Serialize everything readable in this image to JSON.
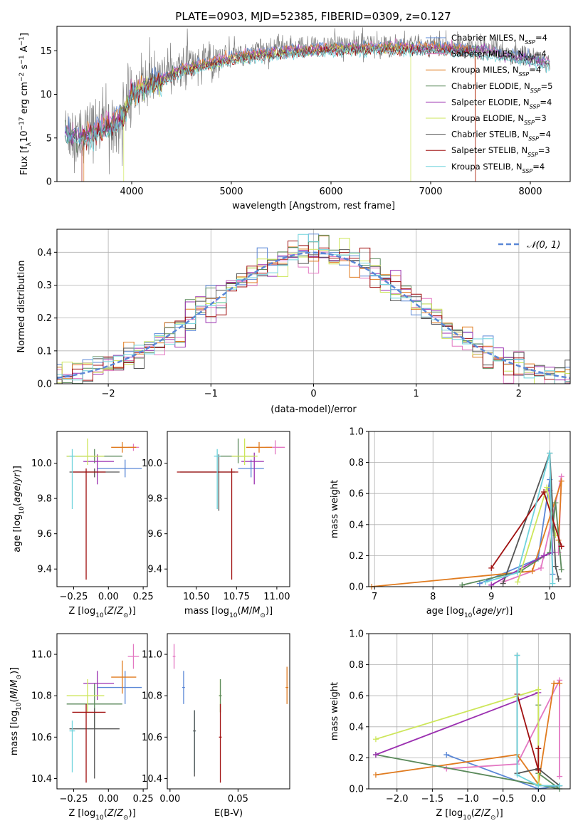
{
  "figure_title": "PLATE=0903, MJD=52385, FIBERID=0309, z=0.127",
  "colors": {
    "Chabrier MILES": "#5a87d6",
    "Salpeter MILES": "#e377c2",
    "Kroupa MILES": "#e07b1f",
    "Chabrier ELODIE": "#5b8a5b",
    "Salpeter ELODIE": "#9b30b0",
    "Kroupa ELODIE": "#cde65a",
    "Chabrier STELIB": "#555555",
    "Salpeter STELIB": "#a01010",
    "Kroupa STELIB": "#6fd3dc",
    "data": "#808080",
    "gauss": "#5a87d6"
  },
  "chart_data": [
    {
      "type": "line",
      "panel": "spectrum",
      "title": "",
      "xlabel": "wavelength [Angstrom, rest frame]",
      "ylabel": "Flux [f_λ 10^-17 erg cm^-2 s^-1 A^-1]",
      "xlim": [
        3250,
        8400
      ],
      "ylim": [
        0,
        17.8
      ],
      "xticks": [
        4000,
        5000,
        6000,
        7000,
        8000
      ],
      "yticks": [
        0,
        5,
        10,
        15
      ],
      "grid": false,
      "legend_position": "top-right",
      "legend": [
        {
          "label": "Chabrier MILES",
          "sub": "SSP",
          "n": "4"
        },
        {
          "label": "Salpeter MILES",
          "sub": "SSP",
          "n": "4"
        },
        {
          "label": "Kroupa MILES",
          "sub": "SSP",
          "n": "4"
        },
        {
          "label": "Chabrier ELODIE",
          "sub": "SSP",
          "n": "5"
        },
        {
          "label": "Salpeter ELODIE",
          "sub": "SSP",
          "n": "4"
        },
        {
          "label": "Kroupa ELODIE",
          "sub": "SSP",
          "n": "3"
        },
        {
          "label": "Chabrier STELIB",
          "sub": "SSP",
          "n": "4"
        },
        {
          "label": "Salpeter STELIB",
          "sub": "SSP",
          "n": "3"
        },
        {
          "label": "Kroupa STELIB",
          "sub": "SSP",
          "n": "4"
        }
      ],
      "continuum": {
        "x": [
          3330,
          3500,
          3600,
          3700,
          3800,
          3900,
          4000,
          4100,
          4200,
          4300,
          4400,
          4500,
          4700,
          5000,
          5300,
          5600,
          6000,
          6500,
          7000,
          7500,
          8000,
          8200
        ],
        "y": [
          5.7,
          5.5,
          6.0,
          6.4,
          6.9,
          7.7,
          10.5,
          11.0,
          11.6,
          11.9,
          12.7,
          13.2,
          13.7,
          14.5,
          15.0,
          15.3,
          15.6,
          15.7,
          15.6,
          15.3,
          14.3,
          13.8
        ]
      },
      "model_cutoffs": {
        "Kroupa ELODIE": [
          3920,
          6800
        ],
        "Salpeter STELIB": [
          3500,
          7450
        ],
        "Kroupa MILES": [
          3520,
          7450
        ]
      }
    },
    {
      "type": "histogram",
      "panel": "residuals",
      "xlabel": "(data-model)/error",
      "ylabel": "Normed distribution",
      "xlim": [
        -2.5,
        2.5
      ],
      "ylim": [
        0,
        0.47
      ],
      "xticks": [
        -2,
        -1,
        0,
        1,
        2
      ],
      "yticks": [
        0.0,
        0.1,
        0.2,
        0.3,
        0.4
      ],
      "grid": true,
      "legend_position": "top-right",
      "gauss_label": "𝒩(0, 1)",
      "bin_width": 0.1
    },
    {
      "type": "errorbar",
      "panel": "age-Z",
      "xlabel": "Z [log10(Z/Z☉)]",
      "ylabel": "age  [log10(age/yr)]",
      "xlim": [
        -0.37,
        0.28
      ],
      "ylim": [
        9.3,
        10.18
      ],
      "xticks": [
        -0.25,
        0.0,
        0.25
      ],
      "yticks": [
        9.4,
        9.6,
        9.8,
        10.0
      ],
      "points": [
        {
          "model": "Chabrier MILES",
          "x": 0.12,
          "y": 9.97,
          "xerr": [
            0.2,
            0.12
          ],
          "yerr": [
            0.05,
            0.05
          ]
        },
        {
          "model": "Salpeter MILES",
          "x": 0.18,
          "y": 10.09,
          "xerr": [
            0.04,
            0.04
          ],
          "yerr": [
            0.02,
            0.02
          ]
        },
        {
          "model": "Kroupa MILES",
          "x": 0.1,
          "y": 10.09,
          "xerr": [
            0.08,
            0.1
          ],
          "yerr": [
            0.03,
            0.03
          ]
        },
        {
          "model": "Chabrier ELODIE",
          "x": -0.1,
          "y": 10.04,
          "xerr": [
            0.2,
            0.2
          ],
          "yerr": [
            0.04,
            0.04
          ]
        },
        {
          "model": "Salpeter ELODIE",
          "x": -0.08,
          "y": 10.01,
          "xerr": [
            0.1,
            0.12
          ],
          "yerr": [
            0.13,
            0.04
          ]
        },
        {
          "model": "Kroupa ELODIE",
          "x": -0.15,
          "y": 10.04,
          "xerr": [
            0.15,
            0.12
          ],
          "yerr": [
            0.05,
            0.1
          ]
        },
        {
          "model": "Chabrier STELIB",
          "x": -0.1,
          "y": 9.95,
          "xerr": [
            0.18,
            0.18
          ],
          "yerr": [
            0.03,
            0.02
          ]
        },
        {
          "model": "Salpeter STELIB",
          "x": -0.16,
          "y": 9.95,
          "xerr": [
            0.1,
            0.14
          ],
          "yerr": [
            0.61,
            0.02
          ]
        },
        {
          "model": "Kroupa STELIB",
          "x": -0.26,
          "y": 10.04,
          "xerr": [
            0.02,
            0.02
          ],
          "yerr": [
            0.3,
            0.04
          ]
        }
      ]
    },
    {
      "type": "errorbar",
      "panel": "age-mass",
      "xlabel": "mass [log10(M/M☉)]",
      "ylabel": "",
      "xlim": [
        10.32,
        11.08
      ],
      "ylim": [
        9.3,
        10.18
      ],
      "xticks": [
        10.5,
        10.75,
        11.0
      ],
      "xticklabels": [
        "10.50",
        "10.75",
        "11.00"
      ],
      "yticks": [
        9.4,
        9.6,
        9.8,
        10.0
      ],
      "points": [
        {
          "model": "Chabrier MILES",
          "x": 10.84,
          "y": 9.97,
          "xerr": [
            0.08,
            0.08
          ],
          "yerr": [
            0.05,
            0.05
          ]
        },
        {
          "model": "Salpeter MILES",
          "x": 10.99,
          "y": 10.09,
          "xerr": [
            0.06,
            0.06
          ],
          "yerr": [
            0.04,
            0.04
          ]
        },
        {
          "model": "Kroupa MILES",
          "x": 10.89,
          "y": 10.09,
          "xerr": [
            0.08,
            0.08
          ],
          "yerr": [
            0.03,
            0.03
          ]
        },
        {
          "model": "Chabrier ELODIE",
          "x": 10.76,
          "y": 10.04,
          "xerr": [
            0.12,
            0.1
          ],
          "yerr": [
            0.04,
            0.1
          ]
        },
        {
          "model": "Salpeter ELODIE",
          "x": 10.86,
          "y": 10.01,
          "xerr": [
            0.08,
            0.06
          ],
          "yerr": [
            0.13,
            0.05
          ]
        },
        {
          "model": "Kroupa ELODIE",
          "x": 10.8,
          "y": 10.04,
          "xerr": [
            0.08,
            0.08
          ],
          "yerr": [
            0.05,
            0.1
          ]
        },
        {
          "model": "Chabrier STELIB",
          "x": 10.64,
          "y": 9.95,
          "xerr": [
            0.24,
            0.1
          ],
          "yerr": [
            0.22,
            0.1
          ]
        },
        {
          "model": "Salpeter STELIB",
          "x": 10.72,
          "y": 9.95,
          "xerr": [
            0.34,
            0.04
          ],
          "yerr": [
            0.61,
            0.02
          ]
        },
        {
          "model": "Kroupa STELIB",
          "x": 10.63,
          "y": 10.04,
          "xerr": [
            0.02,
            0.02
          ],
          "yerr": [
            0.3,
            0.04
          ]
        }
      ]
    },
    {
      "type": "line",
      "panel": "mass-weight-age",
      "xlabel": "age  [log10(age/yr)]",
      "ylabel": "mass weight",
      "xlim": [
        6.9,
        10.35
      ],
      "ylim": [
        0,
        1.0
      ],
      "xticks": [
        7,
        8,
        9,
        10
      ],
      "yticks": [
        0.0,
        0.2,
        0.4,
        0.6,
        0.8,
        1.0
      ],
      "grid": true,
      "series": [
        {
          "model": "Chabrier MILES",
          "x": [
            8.8,
            9.8,
            10.0,
            10.05
          ],
          "y": [
            0.02,
            0.18,
            0.69,
            0.08
          ]
        },
        {
          "model": "Salpeter MILES",
          "x": [
            9.2,
            9.85,
            10.2,
            10.15
          ],
          "y": [
            0.03,
            0.12,
            0.71,
            0.22
          ]
        },
        {
          "model": "Kroupa MILES",
          "x": [
            6.95,
            9.7,
            10.2,
            10.15
          ],
          "y": [
            0.0,
            0.1,
            0.68,
            0.3
          ]
        },
        {
          "model": "Chabrier ELODIE",
          "x": [
            8.5,
            9.5,
            10.0,
            10.1,
            10.2
          ],
          "y": [
            0.01,
            0.1,
            0.22,
            0.54,
            0.11
          ]
        },
        {
          "model": "Salpeter ELODIE",
          "x": [
            9.0,
            9.9,
            10.05,
            10.0
          ],
          "y": [
            0.01,
            0.2,
            0.22,
            0.62
          ]
        },
        {
          "model": "Kroupa ELODIE",
          "x": [
            9.45,
            9.95,
            10.1
          ],
          "y": [
            0.03,
            0.64,
            0.33
          ]
        },
        {
          "model": "Chabrier STELIB",
          "x": [
            9.2,
            10.0,
            10.1,
            10.15
          ],
          "y": [
            0.02,
            0.86,
            0.13,
            0.05
          ]
        },
        {
          "model": "Salpeter STELIB",
          "x": [
            9.0,
            9.9,
            10.2
          ],
          "y": [
            0.12,
            0.61,
            0.26
          ]
        },
        {
          "model": "Kroupa STELIB",
          "x": [
            8.9,
            9.45,
            10.0,
            10.05
          ],
          "y": [
            0.03,
            0.09,
            0.86,
            0.02
          ]
        }
      ]
    },
    {
      "type": "errorbar",
      "panel": "mass-Z",
      "xlabel": "Z [log10(Z/Z☉)]",
      "ylabel": "mass [log10(M/M☉)]",
      "xlim": [
        -0.37,
        0.28
      ],
      "ylim": [
        10.35,
        11.1
      ],
      "xticks": [
        -0.25,
        0.0,
        0.25
      ],
      "yticks": [
        10.4,
        10.6,
        10.8,
        11.0
      ],
      "points": [
        {
          "model": "Chabrier MILES",
          "x": 0.12,
          "y": 10.84,
          "xerr": [
            0.2,
            0.12
          ],
          "yerr": [
            0.08,
            0.08
          ]
        },
        {
          "model": "Salpeter MILES",
          "x": 0.18,
          "y": 10.99,
          "xerr": [
            0.04,
            0.04
          ],
          "yerr": [
            0.06,
            0.06
          ]
        },
        {
          "model": "Kroupa MILES",
          "x": 0.1,
          "y": 10.89,
          "xerr": [
            0.08,
            0.1
          ],
          "yerr": [
            0.08,
            0.08
          ]
        },
        {
          "model": "Chabrier ELODIE",
          "x": -0.1,
          "y": 10.76,
          "xerr": [
            0.2,
            0.2
          ],
          "yerr": [
            0.12,
            0.1
          ]
        },
        {
          "model": "Salpeter ELODIE",
          "x": -0.08,
          "y": 10.86,
          "xerr": [
            0.1,
            0.12
          ],
          "yerr": [
            0.08,
            0.06
          ]
        },
        {
          "model": "Kroupa ELODIE",
          "x": -0.15,
          "y": 10.8,
          "xerr": [
            0.15,
            0.12
          ],
          "yerr": [
            0.08,
            0.08
          ]
        },
        {
          "model": "Chabrier STELIB",
          "x": -0.1,
          "y": 10.64,
          "xerr": [
            0.18,
            0.18
          ],
          "yerr": [
            0.24,
            0.1
          ]
        },
        {
          "model": "Salpeter STELIB",
          "x": -0.16,
          "y": 10.72,
          "xerr": [
            0.1,
            0.14
          ],
          "yerr": [
            0.34,
            0.04
          ]
        },
        {
          "model": "Kroupa STELIB",
          "x": -0.26,
          "y": 10.63,
          "xerr": [
            0.02,
            0.02
          ],
          "yerr": [
            0.2,
            0.05
          ]
        }
      ]
    },
    {
      "type": "errorbar",
      "panel": "mass-EBV",
      "xlabel": "E(B-V)",
      "ylabel": "",
      "xlim": [
        -0.002,
        0.088
      ],
      "ylim": [
        10.35,
        11.1
      ],
      "xticks": [
        0.0,
        0.05
      ],
      "xticklabels": [
        "0.00",
        "0.05"
      ],
      "yticks": [
        10.4,
        10.6,
        10.8,
        11.0
      ],
      "points": [
        {
          "model": "Salpeter MILES",
          "x": 0.003,
          "y": 10.99,
          "xerr": [
            0.001,
            0.001
          ],
          "yerr": [
            0.06,
            0.06
          ]
        },
        {
          "model": "Chabrier MILES",
          "x": 0.01,
          "y": 10.84,
          "xerr": [
            0.001,
            0.001
          ],
          "yerr": [
            0.08,
            0.08
          ]
        },
        {
          "model": "Kroupa MILES",
          "x": 0.086,
          "y": 10.84,
          "xerr": [
            0.001,
            0.001
          ],
          "yerr": [
            0.08,
            0.1
          ]
        },
        {
          "model": "Kroupa STELIB",
          "x": 0.018,
          "y": 10.63,
          "xerr": [
            0.001,
            0.001
          ],
          "yerr": [
            0.2,
            0.1
          ]
        },
        {
          "model": "Chabrier STELIB",
          "x": 0.018,
          "y": 10.63,
          "xerr": [
            0.001,
            0.001
          ],
          "yerr": [
            0.22,
            0.1
          ]
        },
        {
          "model": "Kroupa ELODIE",
          "x": 0.037,
          "y": 10.8,
          "xerr": [
            0.001,
            0.001
          ],
          "yerr": [
            0.08,
            0.08
          ]
        },
        {
          "model": "Chabrier ELODIE",
          "x": 0.037,
          "y": 10.8,
          "xerr": [
            0.001,
            0.001
          ],
          "yerr": [
            0.08,
            0.08
          ]
        },
        {
          "model": "Salpeter STELIB",
          "x": 0.037,
          "y": 10.6,
          "xerr": [
            0.001,
            0.001
          ],
          "yerr": [
            0.22,
            0.16
          ]
        }
      ]
    },
    {
      "type": "line",
      "panel": "mass-weight-Z",
      "xlabel": "Z [log10(Z/Z☉)]",
      "ylabel": "mass weight",
      "xlim": [
        -2.4,
        0.45
      ],
      "ylim": [
        0,
        1.0
      ],
      "xticks": [
        -2.0,
        -1.5,
        -1.0,
        -0.5,
        0.0
      ],
      "xticklabels": [
        "−2.0",
        "−1.5",
        "−1.0",
        "−0.5",
        "0.0"
      ],
      "yticks": [
        0.0,
        0.2,
        0.4,
        0.6,
        0.8,
        1.0
      ],
      "grid": true,
      "series": [
        {
          "model": "Chabrier MILES",
          "x": [
            -1.3,
            0.0,
            0.3,
            0.0
          ],
          "y": [
            0.22,
            0.0,
            0.02,
            0.02
          ]
        },
        {
          "model": "Salpeter MILES",
          "x": [
            -1.3,
            -0.3,
            0.3,
            0.3
          ],
          "y": [
            0.13,
            0.16,
            0.7,
            0.08
          ]
        },
        {
          "model": "Kroupa MILES",
          "x": [
            -2.3,
            -0.3,
            0.0,
            0.22,
            0.3
          ],
          "y": [
            0.09,
            0.22,
            0.03,
            0.68,
            0.68
          ]
        },
        {
          "model": "Chabrier ELODIE",
          "x": [
            -2.3,
            0.3,
            0.0,
            0.0
          ],
          "y": [
            0.22,
            0.0,
            0.1,
            0.54
          ]
        },
        {
          "model": "Salpeter ELODIE",
          "x": [
            -2.3,
            0.0
          ],
          "y": [
            0.22,
            0.62
          ]
        },
        {
          "model": "Kroupa ELODIE",
          "x": [
            -2.3,
            0.0,
            0.0
          ],
          "y": [
            0.32,
            0.64,
            0.03
          ]
        },
        {
          "model": "Chabrier STELIB",
          "x": [
            -0.3,
            -0.3,
            0.0,
            0.3
          ],
          "y": [
            0.86,
            0.1,
            0.13,
            0.02
          ]
        },
        {
          "model": "Salpeter STELIB",
          "x": [
            -0.3,
            0.0,
            0.0
          ],
          "y": [
            0.61,
            0.12,
            0.26
          ]
        },
        {
          "model": "Kroupa STELIB",
          "x": [
            -0.3,
            -0.3,
            0.0,
            0.3
          ],
          "y": [
            0.86,
            0.09,
            0.02,
            0.02
          ]
        }
      ]
    }
  ]
}
